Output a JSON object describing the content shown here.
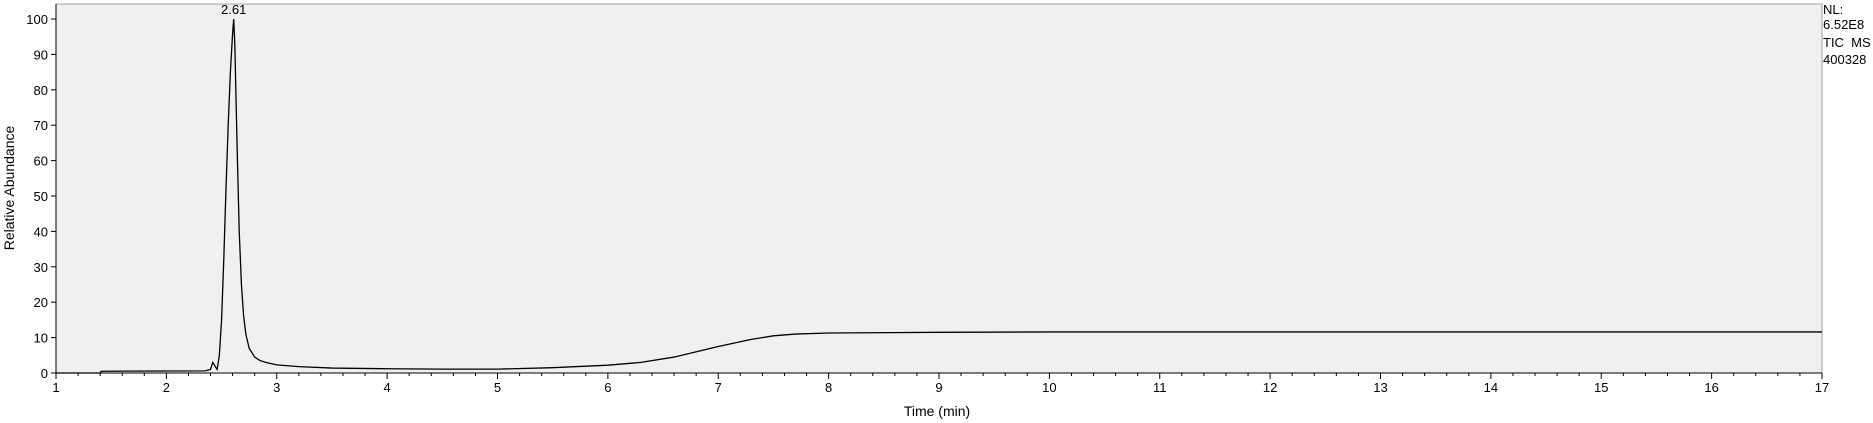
{
  "chart_data": {
    "type": "line",
    "title": "",
    "xlabel": "Time (min)",
    "ylabel": "Relative Abundance",
    "xlim": [
      1,
      17
    ],
    "ylim": [
      0,
      100
    ],
    "grid": false,
    "x_ticks": [
      "1",
      "2",
      "3",
      "4",
      "5",
      "6",
      "7",
      "8",
      "9",
      "10",
      "11",
      "12",
      "13",
      "14",
      "15",
      "16",
      "17"
    ],
    "y_ticks": [
      "0",
      "10",
      "20",
      "30",
      "40",
      "50",
      "60",
      "70",
      "80",
      "90",
      "100"
    ],
    "info": [
      "NL:",
      "6.52E8",
      "TIC  MS",
      "400328"
    ],
    "peaks": [
      {
        "x": 2.61,
        "y": 100,
        "label": "2.61"
      }
    ],
    "series": [
      {
        "x": [
          1.0,
          1.4,
          1.41,
          2.35,
          2.4,
          2.42,
          2.44,
          2.46,
          2.48,
          2.5,
          2.52,
          2.54,
          2.56,
          2.58,
          2.6,
          2.61,
          2.62,
          2.64,
          2.66,
          2.68,
          2.7,
          2.72,
          2.75,
          2.8,
          2.85,
          2.9,
          3.0,
          3.2,
          3.5,
          4.0,
          4.5,
          5.0,
          5.5,
          6.0,
          6.3,
          6.6,
          7.0,
          7.3,
          7.5,
          7.7,
          8.0,
          9.0,
          10.0,
          11.0,
          12.0,
          13.0,
          14.0,
          15.0,
          16.0,
          17.0
        ],
        "y": [
          0.0,
          0.0,
          0.5,
          0.6,
          1.0,
          3.0,
          2.0,
          1.0,
          5.0,
          15.0,
          32.0,
          52.0,
          70.0,
          85.0,
          96.0,
          100.0,
          93.0,
          65.0,
          40.0,
          25.0,
          16.0,
          11.0,
          7.0,
          4.5,
          3.5,
          3.0,
          2.3,
          1.8,
          1.4,
          1.2,
          1.1,
          1.1,
          1.5,
          2.2,
          3.0,
          4.5,
          7.5,
          9.5,
          10.5,
          11.0,
          11.3,
          11.5,
          11.6,
          11.6,
          11.6,
          11.6,
          11.6,
          11.6,
          11.6,
          11.6
        ]
      }
    ]
  }
}
